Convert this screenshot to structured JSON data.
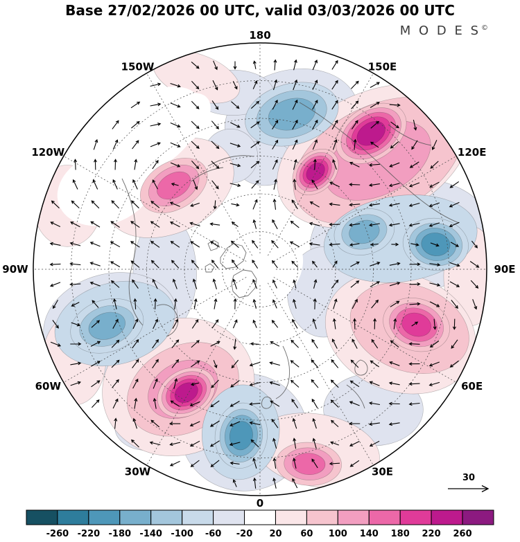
{
  "title": "Base 27/02/2026 00 UTC, valid 03/03/2026 00 UTC",
  "logo": {
    "text": "M O D E S",
    "sup": "©"
  },
  "map": {
    "lon_labels": [
      {
        "label": "180",
        "angle": -90
      },
      {
        "label": "150E",
        "angle": -60
      },
      {
        "label": "120E",
        "angle": -30
      },
      {
        "label": "90E",
        "angle": 0
      },
      {
        "label": "60E",
        "angle": 30
      },
      {
        "label": "30E",
        "angle": 60
      },
      {
        "label": "0",
        "angle": 90
      },
      {
        "label": "30W",
        "angle": 120
      },
      {
        "label": "60W",
        "angle": 150
      },
      {
        "label": "90W",
        "angle": 180
      },
      {
        "label": "120W",
        "angle": -150
      },
      {
        "label": "150W",
        "angle": -120
      }
    ],
    "graticule": {
      "lat_circles": 5,
      "meridian_step": 30
    },
    "coastlines": [
      "M 318,372 l 10,-14 9,-6 12,3 6,10 -4,12 -12,9 -13,2 -8,-8 Z",
      "M 337,398 l 14,-8 12,2 7,11 -2,13 -10,11 -13,3 -9,-9 -2,-12 Z",
      "M 300,352 l 8,-5 7,4 -2,8 -9,3 Z",
      "M 296,385 l 7,-4 6,5 -4,7 -8,0 Z",
      "M 176,258 C 196,300 202,342 190,386 C 182,416 186,448 206,470",
      "M 226,442 c 14,-6 26,2 30,16 c 3,12 -4,24 -16,28",
      "M 432,148 C 470,170 520,210 560,248 C 596,282 630,310 662,322",
      "M 300,240 C 320,228 344,222 366,226",
      "M 276,262 C 290,250 306,244 322,242",
      "M 408,500 c 8,16 12,34 8,52 c -3,12 -10,20 -18,24",
      "M 382,574 c 6,-2 11,2 10,9 c -1,6 -7,9 -12,6 c -4,-3 -3,-12 2,-15 Z",
      "M 500,556 c 12,8 22,20 26,34",
      "M 520,520 c 8,2 12,10 9,17 c -3,6 -12,7 -16,1 c -3,-6 0,-15 7,-18 Z",
      "M 560,180 C 580,196 600,206 622,210"
    ]
  },
  "chart_data": {
    "type": "heatmap",
    "projection": "north_polar_stereographic",
    "vector_overlay": true,
    "title": "Base 27/02/2026 00 UTC, valid 03/03/2026 00 UTC",
    "reference_vector": 30,
    "colorbar": {
      "position": "bottom",
      "ticks": [
        -260,
        -220,
        -180,
        -140,
        -100,
        -60,
        -20,
        20,
        60,
        100,
        140,
        180,
        220,
        260
      ],
      "colors": [
        "#165062",
        "#2e7d9c",
        "#4e97b9",
        "#78afcc",
        "#a3c6dc",
        "#c8daea",
        "#dfe3ef",
        "#ffffff",
        "#fae6e8",
        "#f6c4ce",
        "#f29ec0",
        "#ec68a8",
        "#e03b99",
        "#bd1a8d",
        "#8c1a80"
      ]
    },
    "features": [
      {
        "name": "lavender-tint-top",
        "x": 0.14,
        "y": -0.66,
        "rx": 0.3,
        "ry": 0.22,
        "rot": -15,
        "sign": -1,
        "pale": true,
        "levels": 1
      },
      {
        "name": "lavender-tint-top-left",
        "x": -0.12,
        "y": -0.78,
        "rx": 0.18,
        "ry": 0.1,
        "rot": 0,
        "sign": -1,
        "pale": true,
        "levels": 1
      },
      {
        "name": "lavender-tint-right",
        "x": 0.62,
        "y": -0.14,
        "rx": 0.4,
        "ry": 0.26,
        "rot": -8,
        "sign": -1,
        "pale": true,
        "levels": 1
      },
      {
        "name": "lavender-tint-center-right",
        "x": 0.28,
        "y": 0.1,
        "rx": 0.16,
        "ry": 0.2,
        "rot": 0,
        "sign": -1,
        "pale": true,
        "levels": 1
      },
      {
        "name": "lavender-tint-bottom",
        "x": -0.07,
        "y": 0.72,
        "rx": 0.28,
        "ry": 0.26,
        "rot": 0,
        "sign": -1,
        "pale": true,
        "levels": 1
      },
      {
        "name": "lavender-tint-bottom-right",
        "x": 0.5,
        "y": 0.62,
        "rx": 0.22,
        "ry": 0.16,
        "rot": 0,
        "sign": -1,
        "pale": true,
        "levels": 1
      },
      {
        "name": "lavender-tint-left-center",
        "x": -0.42,
        "y": 0.02,
        "rx": 0.14,
        "ry": 0.26,
        "rot": 0,
        "sign": -1,
        "pale": true,
        "levels": 1
      },
      {
        "name": "lavender-tint-left",
        "x": -0.66,
        "y": 0.24,
        "rx": 0.3,
        "ry": 0.22,
        "rot": -15,
        "sign": -1,
        "pale": true,
        "levels": 1
      },
      {
        "name": "lavender-tint-above-pole",
        "x": 0.02,
        "y": -0.47,
        "rx": 0.13,
        "ry": 0.1,
        "rot": 0,
        "sign": -1,
        "pale": true,
        "levels": 1
      },
      {
        "name": "lavender-tint-upper-left-inner",
        "x": -0.13,
        "y": -0.5,
        "rx": 0.12,
        "ry": 0.12,
        "rot": 0,
        "sign": -1,
        "pale": true,
        "levels": 1
      },
      {
        "name": "lavender-tint-lower-left-edge",
        "x": -0.5,
        "y": 0.7,
        "rx": 0.14,
        "ry": 0.1,
        "rot": 0,
        "sign": -1,
        "pale": true,
        "levels": 1
      },
      {
        "name": "pink-tint-top-left-arc",
        "x": -0.28,
        "y": -0.85,
        "rx": 0.2,
        "ry": 0.1,
        "rot": 20,
        "sign": 1,
        "pale": true,
        "levels": 1
      },
      {
        "name": "pink-tint-far-left-upper",
        "x": -0.85,
        "y": -0.28,
        "rx": 0.15,
        "ry": 0.18,
        "rot": 0,
        "sign": 1,
        "pale": true,
        "levels": 1
      },
      {
        "name": "pink-tint-far-left-lower",
        "x": -0.82,
        "y": 0.4,
        "rx": 0.14,
        "ry": 0.2,
        "rot": 0,
        "sign": 1,
        "pale": true,
        "levels": 1
      },
      {
        "name": "pink-tint-upper-left",
        "x": -0.4,
        "y": -0.36,
        "rx": 0.3,
        "ry": 0.2,
        "rot": -25,
        "sign": 1,
        "pale": true,
        "levels": 1
      },
      {
        "name": "pink-tint-upper-right",
        "x": 0.5,
        "y": -0.5,
        "rx": 0.45,
        "ry": 0.28,
        "rot": -25,
        "sign": 1,
        "pale": true,
        "levels": 1
      },
      {
        "name": "pink-tint-right-edge",
        "x": 0.93,
        "y": 0.03,
        "rx": 0.12,
        "ry": 0.22,
        "rot": 0,
        "sign": 1,
        "pale": true,
        "levels": 1
      },
      {
        "name": "pink-tint-lower-right",
        "x": 0.62,
        "y": 0.28,
        "rx": 0.34,
        "ry": 0.26,
        "rot": 20,
        "sign": 1,
        "pale": true,
        "levels": 1
      },
      {
        "name": "pink-tint-bottom-right",
        "x": 0.25,
        "y": 0.8,
        "rx": 0.28,
        "ry": 0.16,
        "rot": 10,
        "sign": 1,
        "pale": true,
        "levels": 1
      },
      {
        "name": "pink-tint-lower-left",
        "x": -0.36,
        "y": 0.52,
        "rx": 0.34,
        "ry": 0.3,
        "rot": -20,
        "sign": 1,
        "pale": true,
        "levels": 1
      },
      {
        "name": "white-pole-area",
        "x": -0.04,
        "y": -0.04,
        "rx": 0.23,
        "ry": 0.21,
        "rot": 0,
        "sign": 0,
        "levels": 1
      },
      {
        "name": "white-upper-left-1",
        "x": -0.5,
        "y": -0.6,
        "rx": 0.28,
        "ry": 0.16,
        "rot": -35,
        "sign": 0,
        "levels": 1
      },
      {
        "name": "white-upper-left-2",
        "x": -0.68,
        "y": -0.36,
        "rx": 0.22,
        "ry": 0.16,
        "rot": -20,
        "sign": 0,
        "levels": 1
      },
      {
        "name": "white-upper-left-3",
        "x": -0.37,
        "y": -0.64,
        "rx": 0.18,
        "ry": 0.1,
        "rot": -40,
        "sign": 0,
        "levels": 1
      },
      {
        "name": "positive-band-upper-right",
        "x": 0.52,
        "y": -0.48,
        "rx": 0.4,
        "ry": 0.24,
        "rot": -27,
        "sign": 1,
        "levels": 2
      },
      {
        "name": "negative-surround-right",
        "x": 0.62,
        "y": -0.135,
        "rx": 0.34,
        "ry": 0.19,
        "rot": -8,
        "sign": -1,
        "levels": 1
      },
      {
        "name": "positive-surround-lower-right",
        "x": 0.66,
        "y": 0.26,
        "rx": 0.27,
        "ry": 0.19,
        "rot": 20,
        "sign": 1,
        "levels": 1
      },
      {
        "name": "negative-surround-left",
        "x": -0.64,
        "y": 0.24,
        "rx": 0.27,
        "ry": 0.18,
        "rot": -15,
        "sign": -1,
        "levels": 1
      },
      {
        "name": "positive-surround-lower-left",
        "x": -0.34,
        "y": 0.53,
        "rx": 0.26,
        "ry": 0.19,
        "rot": -28,
        "sign": 1,
        "levels": 2
      },
      {
        "name": "negative-surround-bottom",
        "x": -0.085,
        "y": 0.72,
        "rx": 0.17,
        "ry": 0.21,
        "rot": 8,
        "sign": -1,
        "levels": 1
      },
      {
        "name": "negative-center-top",
        "x": 0.14,
        "y": -0.685,
        "rx": 0.21,
        "ry": 0.135,
        "rot": -15,
        "sign": -1,
        "levels": 3
      },
      {
        "name": "positive-center-upper-right-1",
        "x": 0.49,
        "y": -0.6,
        "rx": 0.17,
        "ry": 0.115,
        "rot": -33,
        "sign": 1,
        "levels": 5
      },
      {
        "name": "positive-center-upper-right-2",
        "x": 0.245,
        "y": -0.43,
        "rx": 0.115,
        "ry": 0.085,
        "rot": -45,
        "sign": 1,
        "levels": 5
      },
      {
        "name": "positive-center-upper-left",
        "x": -0.38,
        "y": -0.37,
        "rx": 0.16,
        "ry": 0.105,
        "rot": -30,
        "sign": 1,
        "levels": 3
      },
      {
        "name": "negative-center-right-1",
        "x": 0.46,
        "y": -0.165,
        "rx": 0.135,
        "ry": 0.1,
        "rot": -15,
        "sign": -1,
        "levels": 3
      },
      {
        "name": "negative-center-right-2",
        "x": 0.775,
        "y": -0.11,
        "rx": 0.145,
        "ry": 0.115,
        "rot": 8,
        "sign": -1,
        "levels": 4
      },
      {
        "name": "positive-center-lower-right",
        "x": 0.69,
        "y": 0.245,
        "rx": 0.15,
        "ry": 0.115,
        "rot": 18,
        "sign": 1,
        "levels": 4
      },
      {
        "name": "negative-center-left",
        "x": -0.675,
        "y": 0.25,
        "rx": 0.165,
        "ry": 0.115,
        "rot": -18,
        "sign": -1,
        "levels": 3
      },
      {
        "name": "positive-center-lower-left",
        "x": -0.325,
        "y": 0.545,
        "rx": 0.135,
        "ry": 0.1,
        "rot": -30,
        "sign": 1,
        "levels": 5
      },
      {
        "name": "negative-center-bottom",
        "x": -0.083,
        "y": 0.735,
        "rx": 0.115,
        "ry": 0.145,
        "rot": 8,
        "sign": -1,
        "levels": 4
      },
      {
        "name": "positive-center-bottom-right",
        "x": 0.215,
        "y": 0.86,
        "rx": 0.145,
        "ry": 0.095,
        "rot": 3,
        "sign": 1,
        "levels": 3
      }
    ]
  }
}
